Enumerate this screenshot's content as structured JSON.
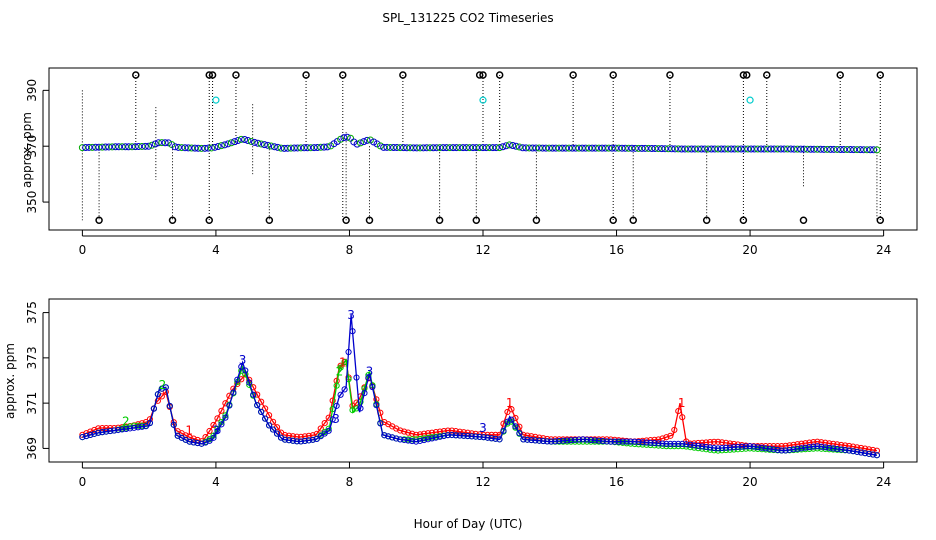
{
  "chart_data": [
    {
      "type": "scatter",
      "title": "SPL_131225  CO2 Timeseries",
      "xlabel": "",
      "ylabel": "approx. ppm",
      "xlim": [
        -1,
        25
      ],
      "ylim": [
        340,
        398
      ],
      "xticks": [
        0,
        4,
        8,
        12,
        16,
        20,
        24
      ],
      "yticks": [
        350,
        370,
        390
      ],
      "baseline": [
        [
          0,
          369.5
        ],
        [
          1,
          369.8
        ],
        [
          1.5,
          369.8
        ],
        [
          2,
          370
        ],
        [
          2.3,
          371.3
        ],
        [
          2.6,
          371.2
        ],
        [
          2.8,
          369.6
        ],
        [
          3.2,
          369.4
        ],
        [
          3.6,
          369.2
        ],
        [
          3.9,
          369.4
        ],
        [
          4.3,
          370.6
        ],
        [
          4.8,
          372.6
        ],
        [
          5.2,
          371.2
        ],
        [
          5.6,
          370.2
        ],
        [
          6,
          369.2
        ],
        [
          6.5,
          369.4
        ],
        [
          7,
          369.5
        ],
        [
          7.4,
          369.8
        ],
        [
          7.8,
          373
        ],
        [
          8,
          373.3
        ],
        [
          8.2,
          370.6
        ],
        [
          8.6,
          372.4
        ],
        [
          9,
          369.6
        ],
        [
          10,
          369.4
        ],
        [
          11,
          369.5
        ],
        [
          12,
          369.5
        ],
        [
          12.5,
          369.5
        ],
        [
          12.8,
          370.5
        ],
        [
          13.2,
          369.4
        ],
        [
          14,
          369.3
        ],
        [
          15,
          369.3
        ],
        [
          16,
          369.3
        ],
        [
          17,
          369.2
        ],
        [
          18,
          369
        ],
        [
          19,
          369
        ],
        [
          20,
          369
        ],
        [
          21,
          369
        ],
        [
          22,
          368.9
        ],
        [
          23,
          368.8
        ],
        [
          23.8,
          368.7
        ]
      ],
      "outlier_high": [
        1.6,
        3.8,
        3.9,
        4.6,
        6.7,
        7.8,
        9.6,
        11.9,
        12.0,
        12.5,
        14.7,
        15.9,
        17.6,
        19.8,
        19.9,
        20.5,
        22.7,
        23.9
      ],
      "outlier_high_value": 395.5,
      "outlier_low": [
        0.5,
        2.7,
        3.8,
        5.6,
        7.9,
        8.6,
        10.7,
        11.8,
        13.6,
        15.9,
        16.5,
        18.7,
        19.8,
        21.6,
        23.9
      ],
      "outlier_low_value": 343.5,
      "cyan_points": [
        [
          4.0,
          386.5
        ],
        [
          12.0,
          386.5
        ],
        [
          20.0,
          386.5
        ]
      ],
      "drop_lines": [
        [
          0,
          390,
          343.5
        ],
        [
          0.5,
          370,
          343.5
        ],
        [
          1.6,
          395.5,
          370
        ],
        [
          2.2,
          384,
          358
        ],
        [
          2.7,
          370,
          343.5
        ],
        [
          3.8,
          395.5,
          343.5
        ],
        [
          3.9,
          395.5,
          370
        ],
        [
          4.6,
          395.5,
          370
        ],
        [
          5.1,
          385,
          360
        ],
        [
          5.6,
          370,
          343.5
        ],
        [
          6.7,
          395.5,
          370
        ],
        [
          7.8,
          395.5,
          343.5
        ],
        [
          7.9,
          375,
          343.5
        ],
        [
          8.6,
          370,
          343.5
        ],
        [
          9.6,
          395.5,
          370
        ],
        [
          10.7,
          370,
          343.5
        ],
        [
          11.8,
          370,
          343.5
        ],
        [
          12.0,
          395.5,
          370
        ],
        [
          12.5,
          395.5,
          370
        ],
        [
          13.6,
          370,
          343.5
        ],
        [
          14.7,
          395.5,
          370
        ],
        [
          15.9,
          395.5,
          343.5
        ],
        [
          16.5,
          370,
          343.5
        ],
        [
          17.6,
          395.5,
          370
        ],
        [
          18.7,
          370,
          343.5
        ],
        [
          19.8,
          395.5,
          343.5
        ],
        [
          20.5,
          395.5,
          370
        ],
        [
          21.6,
          370,
          355
        ],
        [
          22.7,
          395.5,
          370
        ],
        [
          23.9,
          395.5,
          343.5
        ],
        [
          23.8,
          370,
          343.5
        ]
      ]
    },
    {
      "type": "line",
      "title": "",
      "xlabel": "Hour of Day (UTC)",
      "ylabel": "approx. ppm",
      "xlim": [
        -1,
        25
      ],
      "ylim": [
        368.4,
        375.6
      ],
      "xticks": [
        0,
        4,
        8,
        12,
        16,
        20,
        24
      ],
      "yticks": [
        369,
        371,
        373,
        375
      ],
      "series": [
        {
          "name": "1",
          "color": "#ff0000",
          "points": [
            [
              0,
              369.6
            ],
            [
              0.5,
              369.9
            ],
            [
              1,
              369.9
            ],
            [
              1.5,
              370
            ],
            [
              2,
              370.2
            ],
            [
              2.2,
              371
            ],
            [
              2.5,
              371.5
            ],
            [
              2.8,
              369.8
            ],
            [
              3.2,
              369.5
            ],
            [
              3.6,
              369.3
            ],
            [
              4,
              370.2
            ],
            [
              4.5,
              371.6
            ],
            [
              4.9,
              372.3
            ],
            [
              5.3,
              371.2
            ],
            [
              5.7,
              370.2
            ],
            [
              6,
              369.6
            ],
            [
              6.5,
              369.5
            ],
            [
              7,
              369.6
            ],
            [
              7.4,
              370.4
            ],
            [
              7.7,
              372.6
            ],
            [
              7.9,
              372.9
            ],
            [
              8.1,
              370.8
            ],
            [
              8.3,
              371.2
            ],
            [
              8.6,
              372.2
            ],
            [
              9,
              370.2
            ],
            [
              9.5,
              369.8
            ],
            [
              10,
              369.6
            ],
            [
              10.5,
              369.7
            ],
            [
              11,
              369.8
            ],
            [
              11.5,
              369.7
            ],
            [
              12,
              369.6
            ],
            [
              12.5,
              369.6
            ],
            [
              12.8,
              370.9
            ],
            [
              13.2,
              369.6
            ],
            [
              14,
              369.4
            ],
            [
              15,
              369.4
            ],
            [
              15.8,
              369.4
            ],
            [
              16.5,
              369.3
            ],
            [
              17.3,
              369.4
            ],
            [
              17.7,
              369.6
            ],
            [
              17.9,
              371
            ],
            [
              18.1,
              369.2
            ],
            [
              19,
              369.3
            ],
            [
              20,
              369.1
            ],
            [
              21,
              369.1
            ],
            [
              22,
              369.3
            ],
            [
              23,
              369.1
            ],
            [
              23.8,
              368.9
            ]
          ]
        },
        {
          "name": "2",
          "color": "#00cc00",
          "points": [
            [
              0,
              369.5
            ],
            [
              0.5,
              369.7
            ],
            [
              1,
              369.8
            ],
            [
              1.5,
              370
            ],
            [
              2,
              370
            ],
            [
              2.3,
              371.6
            ],
            [
              2.5,
              371.7
            ],
            [
              2.8,
              369.6
            ],
            [
              3.2,
              369.3
            ],
            [
              3.6,
              369.2
            ],
            [
              3.9,
              369.5
            ],
            [
              4.3,
              370.5
            ],
            [
              4.8,
              372.6
            ],
            [
              5.2,
              371
            ],
            [
              5.6,
              370
            ],
            [
              6,
              369.4
            ],
            [
              6.5,
              369.3
            ],
            [
              7,
              369.4
            ],
            [
              7.4,
              369.9
            ],
            [
              7.7,
              372.5
            ],
            [
              7.9,
              372.9
            ],
            [
              8.1,
              370.6
            ],
            [
              8.3,
              370.9
            ],
            [
              8.6,
              372.4
            ],
            [
              9,
              369.6
            ],
            [
              9.5,
              369.4
            ],
            [
              10,
              369.4
            ],
            [
              11,
              369.6
            ],
            [
              12,
              369.5
            ],
            [
              12.5,
              369.4
            ],
            [
              12.8,
              370.3
            ],
            [
              13.2,
              369.4
            ],
            [
              14,
              369.3
            ],
            [
              15,
              369.3
            ],
            [
              15.8,
              369.3
            ],
            [
              16.5,
              369.2
            ],
            [
              17.5,
              369.1
            ],
            [
              18,
              369.1
            ],
            [
              19,
              368.9
            ],
            [
              20,
              369
            ],
            [
              21,
              368.9
            ],
            [
              22,
              369
            ],
            [
              23,
              368.9
            ],
            [
              23.8,
              368.7
            ]
          ]
        },
        {
          "name": "3",
          "color": "#0000cc",
          "points": [
            [
              0,
              369.5
            ],
            [
              0.5,
              369.7
            ],
            [
              1,
              369.8
            ],
            [
              1.5,
              369.9
            ],
            [
              2,
              370
            ],
            [
              2.3,
              371.6
            ],
            [
              2.5,
              371.7
            ],
            [
              2.8,
              369.6
            ],
            [
              3.2,
              369.3
            ],
            [
              3.6,
              369.2
            ],
            [
              3.9,
              369.4
            ],
            [
              4.3,
              370.4
            ],
            [
              4.8,
              372.8
            ],
            [
              5.2,
              371
            ],
            [
              5.6,
              370
            ],
            [
              6,
              369.4
            ],
            [
              6.5,
              369.3
            ],
            [
              7,
              369.4
            ],
            [
              7.4,
              369.8
            ],
            [
              7.7,
              371.3
            ],
            [
              7.9,
              371.7
            ],
            [
              8.05,
              374.9
            ],
            [
              8.3,
              370.6
            ],
            [
              8.6,
              372.3
            ],
            [
              9,
              369.6
            ],
            [
              9.5,
              369.4
            ],
            [
              10,
              369.3
            ],
            [
              11,
              369.6
            ],
            [
              12,
              369.5
            ],
            [
              12.5,
              369.4
            ],
            [
              12.8,
              370.4
            ],
            [
              13.2,
              369.4
            ],
            [
              14,
              369.3
            ],
            [
              15,
              369.4
            ],
            [
              15.8,
              369.3
            ],
            [
              16.5,
              369.3
            ],
            [
              17.5,
              369.2
            ],
            [
              18,
              369.2
            ],
            [
              19,
              369
            ],
            [
              20,
              369.1
            ],
            [
              21,
              368.9
            ],
            [
              22,
              369.1
            ],
            [
              23,
              368.9
            ],
            [
              23.8,
              368.7
            ]
          ]
        }
      ],
      "labeled_points": [
        {
          "label": "3",
          "x": 8.05,
          "y": 374.9,
          "color": "#0000cc"
        },
        {
          "label": "1",
          "x": 17.95,
          "y": 371,
          "color": "#ff0000"
        },
        {
          "label": "1",
          "x": 7.8,
          "y": 372.8,
          "color": "#ff0000"
        },
        {
          "label": "2",
          "x": 7.7,
          "y": 372.4,
          "color": "#00cc00"
        },
        {
          "label": "3",
          "x": 8.6,
          "y": 372.4,
          "color": "#0000cc"
        },
        {
          "label": "3",
          "x": 4.8,
          "y": 372.9,
          "color": "#0000cc"
        },
        {
          "label": "2",
          "x": 2.4,
          "y": 371.8,
          "color": "#00cc00"
        },
        {
          "label": "1",
          "x": 12.8,
          "y": 371,
          "color": "#ff0000"
        },
        {
          "label": "3",
          "x": 4.0,
          "y": 369.8,
          "color": "#0000cc"
        },
        {
          "label": "3",
          "x": 7.6,
          "y": 370.3,
          "color": "#0000cc"
        },
        {
          "label": "3",
          "x": 12.0,
          "y": 369.9,
          "color": "#0000cc"
        },
        {
          "label": "2",
          "x": 1.3,
          "y": 370.2,
          "color": "#00cc00"
        },
        {
          "label": "1",
          "x": 3.2,
          "y": 369.8,
          "color": "#ff0000"
        }
      ]
    }
  ]
}
